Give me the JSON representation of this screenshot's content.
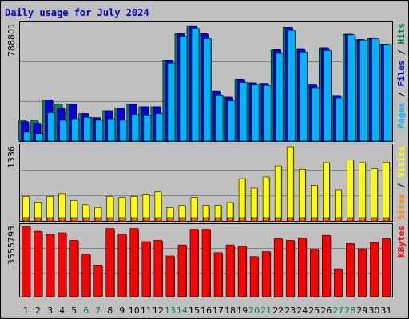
{
  "chart_data": {
    "type": "bar",
    "title": "Daily usage for July 2024",
    "categories": [
      "1",
      "2",
      "3",
      "4",
      "5",
      "6",
      "7",
      "8",
      "9",
      "10",
      "11",
      "12",
      "13",
      "14",
      "15",
      "16",
      "17",
      "18",
      "19",
      "20",
      "21",
      "22",
      "23",
      "24",
      "25",
      "26",
      "27",
      "28",
      "29",
      "30",
      "31"
    ],
    "weekend_days": [
      "6",
      "7",
      "13",
      "14",
      "20",
      "21",
      "27",
      "28"
    ],
    "panels": [
      {
        "id": "hits-files-pages",
        "ymax": 788801,
        "ymax_label": "788801",
        "legend": [
          {
            "label": "Pages",
            "color": "#00b4ff"
          },
          {
            "label": "Files",
            "color": "#0000ff"
          },
          {
            "label": "Hits",
            "color": "#008040"
          }
        ],
        "series": [
          {
            "name": "Hits",
            "color": "#00805c",
            "values": [
              140000,
              140000,
              277000,
              250000,
              250000,
              185000,
              157000,
              204000,
              222000,
              250000,
              231000,
              231000,
              545000,
              722000,
              777000,
              722000,
              337000,
              295000,
              416000,
              392000,
              388000,
              615000,
              765000,
              622000,
              383000,
              628000,
              307000,
              719000,
              684000,
              691000,
              652000
            ]
          },
          {
            "name": "Files",
            "color": "#0000e0",
            "values": [
              130000,
              120000,
              277000,
              220000,
              250000,
              185000,
              157000,
              204000,
              222000,
              250000,
              231000,
              231000,
              545000,
              722000,
              777000,
              722000,
              337000,
              295000,
              416000,
              392000,
              388000,
              615000,
              765000,
              622000,
              383000,
              628000,
              307000,
              719000,
              684000,
              691000,
              652000
            ]
          },
          {
            "name": "Pages",
            "color": "#00b4ff",
            "values": [
              60000,
              50000,
              190000,
              140000,
              150000,
              160000,
              140000,
              150000,
              140000,
              180000,
              175000,
              185000,
              525000,
              705000,
              760000,
              690000,
              310000,
              270000,
              395000,
              380000,
              375000,
              590000,
              745000,
              600000,
              360000,
              610000,
              290000,
              715000,
              680000,
              690000,
              650000
            ]
          }
        ]
      },
      {
        "id": "visits-sites",
        "ymax": 1336,
        "ymax_label": "1336",
        "legend": [
          {
            "label": "Sites",
            "color": "#ff8000"
          },
          {
            "label": "Visits",
            "color": "#ffff00"
          }
        ],
        "series": [
          {
            "name": "Visits",
            "color": "#ffff00",
            "values": [
              440,
              340,
              440,
              490,
              370,
              290,
              240,
              440,
              420,
              440,
              480,
              520,
              240,
              280,
              420,
              280,
              280,
              330,
              760,
              590,
              790,
              990,
              1336,
              930,
              640,
              1050,
              560,
              1100,
              1050,
              940,
              1060
            ]
          },
          {
            "name": "Sites",
            "color": "#ff8000",
            "values": [
              60,
              60,
              60,
              60,
              60,
              60,
              60,
              60,
              60,
              60,
              60,
              60,
              60,
              60,
              60,
              60,
              60,
              60,
              60,
              60,
              60,
              60,
              60,
              60,
              60,
              60,
              60,
              60,
              60,
              60,
              60
            ]
          }
        ]
      },
      {
        "id": "kbytes",
        "ymax": 3555793,
        "ymax_label": "3555793",
        "legend": [
          {
            "label": "KBytes",
            "color": "#ff0000"
          }
        ],
        "series": [
          {
            "name": "KBytes",
            "color": "#ff0000",
            "values": [
              3555793,
              3310000,
              3150000,
              3230000,
              2850000,
              2150000,
              1600000,
              3450000,
              3180000,
              3450000,
              2790000,
              2850000,
              2060000,
              2620000,
              3410000,
              3410000,
              2230000,
              2620000,
              2570000,
              2030000,
              2280000,
              2930000,
              2850000,
              2960000,
              2400000,
              3100000,
              1410000,
              2690000,
              2420000,
              2740000,
              2930000
            ]
          }
        ]
      }
    ]
  }
}
